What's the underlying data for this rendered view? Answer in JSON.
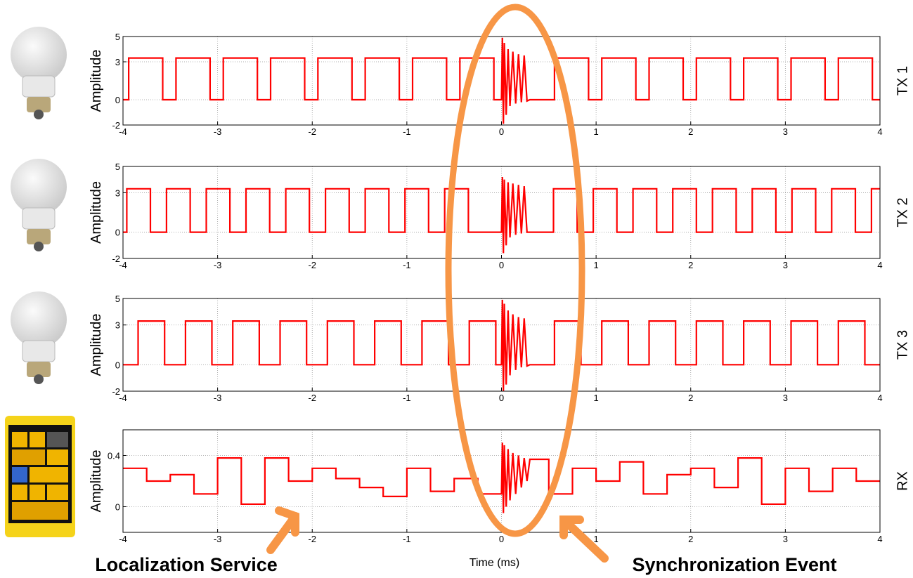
{
  "chart_data": [
    {
      "type": "line",
      "ylabel": "Amplitude",
      "xlim": [
        -4,
        4
      ],
      "xticks": [
        -4,
        -3,
        -2,
        -1,
        0,
        1,
        2,
        3,
        4
      ],
      "ylim": [
        -2,
        5
      ],
      "yticks": [
        -2,
        0,
        3,
        5
      ],
      "grid": true,
      "series": [
        {
          "name": "TX 1",
          "color": "#ff0000",
          "x": [
            -4,
            -3.94,
            -3.94,
            -3.58,
            -3.58,
            -3.44,
            -3.44,
            -3.08,
            -3.08,
            -2.94,
            -2.94,
            -2.58,
            -2.58,
            -2.44,
            -2.44,
            -2.08,
            -2.08,
            -1.94,
            -1.94,
            -1.58,
            -1.58,
            -1.44,
            -1.44,
            -1.08,
            -1.08,
            -0.94,
            -0.94,
            -0.58,
            -0.58,
            -0.44,
            -0.44,
            -0.08,
            -0.08,
            0,
            0.01,
            0.02,
            0.03,
            0.05,
            0.07,
            0.09,
            0.12,
            0.15,
            0.18,
            0.21,
            0.24,
            0.27,
            0.3,
            0.56,
            0.56,
            0.92,
            0.92,
            1.06,
            1.06,
            1.42,
            1.42,
            1.56,
            1.56,
            1.92,
            1.92,
            2.06,
            2.06,
            2.42,
            2.42,
            2.56,
            2.56,
            2.92,
            2.92,
            3.06,
            3.06,
            3.42,
            3.42,
            3.56,
            3.56,
            3.92,
            3.92,
            4
          ],
          "values": [
            0,
            0,
            3.3,
            3.3,
            0,
            0,
            3.3,
            3.3,
            0,
            0,
            3.3,
            3.3,
            0,
            0,
            3.3,
            3.3,
            0,
            0,
            3.3,
            3.3,
            0,
            0,
            3.3,
            3.3,
            0,
            0,
            3.3,
            3.3,
            0,
            0,
            3.3,
            3.3,
            0,
            0,
            4.9,
            -1.9,
            4.5,
            -1.2,
            4.0,
            -0.5,
            3.8,
            -0.3,
            3.6,
            -0.2,
            3.5,
            -0.1,
            0,
            0,
            3.3,
            3.3,
            0,
            0,
            3.3,
            3.3,
            0,
            0,
            3.3,
            3.3,
            0,
            0,
            3.3,
            3.3,
            0,
            0,
            3.3,
            3.3,
            0,
            0,
            3.3,
            3.3,
            0,
            0,
            3.3,
            3.3,
            0,
            0
          ]
        }
      ]
    },
    {
      "type": "line",
      "ylabel": "Amplitude",
      "xlim": [
        -4,
        4
      ],
      "xticks": [
        -4,
        -3,
        -2,
        -1,
        0,
        1,
        2,
        3,
        4
      ],
      "ylim": [
        -2,
        5
      ],
      "yticks": [
        -2,
        0,
        3,
        5
      ],
      "grid": true,
      "series": [
        {
          "name": "TX 2",
          "color": "#ff0000",
          "x": [
            -4,
            -3.96,
            -3.96,
            -3.71,
            -3.71,
            -3.54,
            -3.54,
            -3.29,
            -3.29,
            -3.12,
            -3.12,
            -2.87,
            -2.87,
            -2.7,
            -2.7,
            -2.45,
            -2.45,
            -2.28,
            -2.28,
            -2.03,
            -2.03,
            -1.86,
            -1.86,
            -1.61,
            -1.61,
            -1.44,
            -1.44,
            -1.19,
            -1.19,
            -1.02,
            -1.02,
            -0.77,
            -0.77,
            -0.6,
            -0.6,
            -0.35,
            -0.35,
            0,
            0.01,
            0.02,
            0.03,
            0.05,
            0.07,
            0.09,
            0.12,
            0.15,
            0.18,
            0.21,
            0.24,
            0.27,
            0.3,
            0.55,
            0.55,
            0.8,
            0.8,
            0.97,
            0.97,
            1.22,
            1.22,
            1.39,
            1.39,
            1.64,
            1.64,
            1.81,
            1.81,
            2.06,
            2.06,
            2.23,
            2.23,
            2.48,
            2.48,
            2.65,
            2.65,
            2.9,
            2.9,
            3.07,
            3.07,
            3.32,
            3.32,
            3.49,
            3.49,
            3.74,
            3.74,
            3.91,
            3.91,
            4
          ],
          "values": [
            0,
            0,
            3.3,
            3.3,
            0,
            0,
            3.3,
            3.3,
            0,
            0,
            3.3,
            3.3,
            0,
            0,
            3.3,
            3.3,
            0,
            0,
            3.3,
            3.3,
            0,
            0,
            3.3,
            3.3,
            0,
            0,
            3.3,
            3.3,
            0,
            0,
            3.3,
            3.3,
            0,
            0,
            3.3,
            3.3,
            0,
            0,
            4.2,
            -1.6,
            4.0,
            -1.0,
            3.8,
            -0.4,
            3.7,
            -0.2,
            3.6,
            -0.1,
            3.5,
            0,
            0,
            0,
            3.3,
            3.3,
            0,
            0,
            3.3,
            3.3,
            0,
            0,
            3.3,
            3.3,
            0,
            0,
            3.3,
            3.3,
            0,
            0,
            3.3,
            3.3,
            0,
            0,
            3.3,
            3.3,
            0,
            0,
            3.3,
            3.3,
            0,
            0,
            3.3,
            3.3,
            0,
            0,
            3.3,
            3.3
          ]
        }
      ]
    },
    {
      "type": "line",
      "ylabel": "Amplitude",
      "xlim": [
        -4,
        4
      ],
      "xticks": [
        -4,
        -3,
        -2,
        -1,
        0,
        1,
        2,
        3,
        4
      ],
      "ylim": [
        -2,
        5
      ],
      "yticks": [
        -2,
        0,
        3,
        5
      ],
      "grid": true,
      "series": [
        {
          "name": "TX 3",
          "color": "#ff0000",
          "x": [
            -4,
            -3.84,
            -3.84,
            -3.56,
            -3.56,
            -3.34,
            -3.34,
            -3.06,
            -3.06,
            -2.84,
            -2.84,
            -2.56,
            -2.56,
            -2.34,
            -2.34,
            -2.06,
            -2.06,
            -1.84,
            -1.84,
            -1.56,
            -1.56,
            -1.34,
            -1.34,
            -1.06,
            -1.06,
            -0.84,
            -0.84,
            -0.56,
            -0.56,
            -0.34,
            -0.34,
            -0.06,
            -0.06,
            0,
            0.01,
            0.02,
            0.03,
            0.05,
            0.07,
            0.09,
            0.12,
            0.15,
            0.18,
            0.21,
            0.24,
            0.27,
            0.3,
            0.56,
            0.56,
            0.84,
            0.84,
            1.06,
            1.06,
            1.34,
            1.34,
            1.56,
            1.56,
            1.84,
            1.84,
            2.06,
            2.06,
            2.34,
            2.34,
            2.56,
            2.56,
            2.84,
            2.84,
            3.06,
            3.06,
            3.34,
            3.34,
            3.56,
            3.56,
            3.84,
            3.84,
            4
          ],
          "values": [
            0,
            0,
            3.3,
            3.3,
            0,
            0,
            3.3,
            3.3,
            0,
            0,
            3.3,
            3.3,
            0,
            0,
            3.3,
            3.3,
            0,
            0,
            3.3,
            3.3,
            0,
            0,
            3.3,
            3.3,
            0,
            0,
            3.3,
            3.3,
            0,
            0,
            3.3,
            3.3,
            0,
            0,
            4.9,
            -2.0,
            4.6,
            -1.5,
            4.1,
            -0.8,
            3.8,
            -0.4,
            3.6,
            -0.2,
            3.5,
            -0.1,
            0,
            0,
            3.3,
            3.3,
            0,
            0,
            3.3,
            3.3,
            0,
            0,
            3.3,
            3.3,
            0,
            0,
            3.3,
            3.3,
            0,
            0,
            3.3,
            3.3,
            0,
            0,
            3.3,
            3.3,
            0,
            0,
            3.3,
            3.3,
            0,
            0
          ]
        }
      ]
    },
    {
      "type": "line",
      "ylabel": "Amplitude",
      "xlabel": "Time (ms)",
      "xlim": [
        -4,
        4
      ],
      "xticks": [
        -4,
        -3,
        -2,
        -1,
        0,
        1,
        2,
        3,
        4
      ],
      "ylim": [
        -0.2,
        0.6
      ],
      "yticks": [
        0,
        0.4
      ],
      "grid": true,
      "series": [
        {
          "name": "RX",
          "color": "#ff0000",
          "x": [
            -4,
            -3.75,
            -3.75,
            -3.5,
            -3.5,
            -3.25,
            -3.25,
            -3,
            -3,
            -2.75,
            -2.75,
            -2.5,
            -2.5,
            -2.25,
            -2.25,
            -2,
            -2,
            -1.75,
            -1.75,
            -1.5,
            -1.5,
            -1.25,
            -1.25,
            -1,
            -1,
            -0.75,
            -0.75,
            -0.5,
            -0.5,
            -0.25,
            -0.25,
            0,
            0.01,
            0.02,
            0.03,
            0.05,
            0.07,
            0.09,
            0.12,
            0.15,
            0.18,
            0.21,
            0.24,
            0.27,
            0.3,
            0.5,
            0.5,
            0.75,
            0.75,
            1,
            1,
            1.25,
            1.25,
            1.5,
            1.5,
            1.75,
            1.75,
            2,
            2,
            2.25,
            2.25,
            2.5,
            2.5,
            2.75,
            2.75,
            3,
            3,
            3.25,
            3.25,
            3.5,
            3.5,
            3.75,
            3.75,
            4
          ],
          "values": [
            0.3,
            0.3,
            0.2,
            0.2,
            0.25,
            0.25,
            0.1,
            0.1,
            0.38,
            0.38,
            0.02,
            0.02,
            0.38,
            0.38,
            0.2,
            0.2,
            0.3,
            0.3,
            0.22,
            0.22,
            0.15,
            0.15,
            0.08,
            0.08,
            0.3,
            0.3,
            0.12,
            0.12,
            0.22,
            0.22,
            0.1,
            0.1,
            0.5,
            -0.05,
            0.48,
            0.0,
            0.45,
            0.05,
            0.42,
            0.1,
            0.4,
            0.15,
            0.38,
            0.2,
            0.37,
            0.37,
            0.1,
            0.1,
            0.3,
            0.3,
            0.2,
            0.2,
            0.35,
            0.35,
            0.1,
            0.1,
            0.25,
            0.25,
            0.3,
            0.3,
            0.15,
            0.15,
            0.38,
            0.38,
            0.02,
            0.02,
            0.3,
            0.3,
            0.12,
            0.12,
            0.3,
            0.3,
            0.2,
            0.2
          ]
        }
      ]
    }
  ],
  "annotations": [
    "Localization Service",
    "Synchronization Event"
  ]
}
